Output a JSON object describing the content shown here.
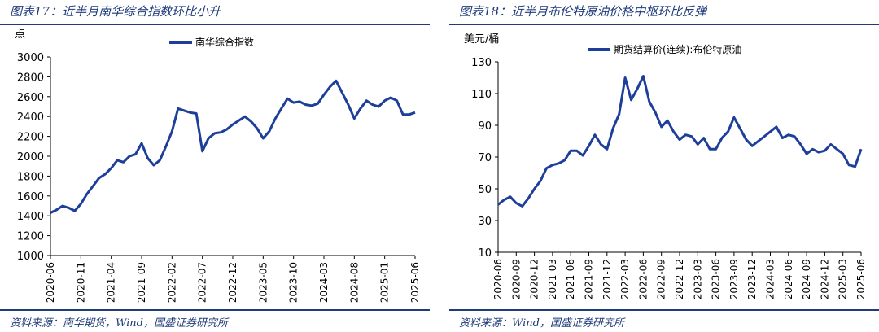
{
  "colors": {
    "accent": "#1f3b7a",
    "line": "#1e3f99",
    "axis": "#000000"
  },
  "charts": [
    {
      "figure_title": "图表17：近半月南华综合指数环比小升",
      "source": "资料来源：南华期货，Wind，国盛证券研究所",
      "chart_data": {
        "type": "line",
        "ylabel": "点",
        "ylim": [
          1000,
          3000
        ],
        "yticks": [
          "1000",
          "1200",
          "1400",
          "1600",
          "1800",
          "2000",
          "2200",
          "2400",
          "2600",
          "2800",
          "3000"
        ],
        "xticks": [
          "2020-06",
          "2020-11",
          "2021-04",
          "2021-09",
          "2022-02",
          "2022-07",
          "2022-12",
          "2023-05",
          "2023-10",
          "2024-03",
          "2024-08",
          "2025-01",
          "2025-06"
        ],
        "legend": "top-center",
        "series": [
          {
            "name": "南华综合指数",
            "points": [
              [
                "2020-06",
                1430
              ],
              [
                "2020-07",
                1460
              ],
              [
                "2020-08",
                1500
              ],
              [
                "2020-09",
                1480
              ],
              [
                "2020-10",
                1450
              ],
              [
                "2020-11",
                1520
              ],
              [
                "2020-12",
                1620
              ],
              [
                "2021-01",
                1700
              ],
              [
                "2021-02",
                1780
              ],
              [
                "2021-03",
                1820
              ],
              [
                "2021-04",
                1880
              ],
              [
                "2021-05",
                1960
              ],
              [
                "2021-06",
                1940
              ],
              [
                "2021-07",
                2000
              ],
              [
                "2021-08",
                2020
              ],
              [
                "2021-09",
                2130
              ],
              [
                "2021-10",
                1980
              ],
              [
                "2021-11",
                1910
              ],
              [
                "2021-12",
                1960
              ],
              [
                "2022-01",
                2100
              ],
              [
                "2022-02",
                2250
              ],
              [
                "2022-03",
                2480
              ],
              [
                "2022-04",
                2460
              ],
              [
                "2022-05",
                2440
              ],
              [
                "2022-06",
                2430
              ],
              [
                "2022-07",
                2050
              ],
              [
                "2022-08",
                2180
              ],
              [
                "2022-09",
                2230
              ],
              [
                "2022-10",
                2240
              ],
              [
                "2022-11",
                2270
              ],
              [
                "2022-12",
                2320
              ],
              [
                "2023-01",
                2360
              ],
              [
                "2023-02",
                2400
              ],
              [
                "2023-03",
                2350
              ],
              [
                "2023-04",
                2280
              ],
              [
                "2023-05",
                2180
              ],
              [
                "2023-06",
                2250
              ],
              [
                "2023-07",
                2380
              ],
              [
                "2023-08",
                2480
              ],
              [
                "2023-09",
                2580
              ],
              [
                "2023-10",
                2540
              ],
              [
                "2023-11",
                2550
              ],
              [
                "2023-12",
                2520
              ],
              [
                "2024-01",
                2510
              ],
              [
                "2024-02",
                2530
              ],
              [
                "2024-03",
                2620
              ],
              [
                "2024-04",
                2700
              ],
              [
                "2024-05",
                2760
              ],
              [
                "2024-06",
                2640
              ],
              [
                "2024-07",
                2520
              ],
              [
                "2024-08",
                2380
              ],
              [
                "2024-09",
                2480
              ],
              [
                "2024-10",
                2560
              ],
              [
                "2024-11",
                2520
              ],
              [
                "2024-12",
                2500
              ],
              [
                "2025-01",
                2560
              ],
              [
                "2025-02",
                2590
              ],
              [
                "2025-03",
                2560
              ],
              [
                "2025-04",
                2420
              ],
              [
                "2025-05",
                2420
              ],
              [
                "2025-06",
                2440
              ]
            ]
          }
        ]
      }
    },
    {
      "figure_title": "图表18：近半月布伦特原油价格中枢环比反弹",
      "source": "资料来源：Wind，国盛证券研究所",
      "chart_data": {
        "type": "line",
        "ylabel": "美元/桶",
        "ylim": [
          10,
          130
        ],
        "yticks": [
          "10",
          "30",
          "50",
          "70",
          "90",
          "110",
          "130"
        ],
        "xticks": [
          "2020-06",
          "2020-09",
          "2020-12",
          "2021-03",
          "2021-06",
          "2021-09",
          "2021-12",
          "2022-03",
          "2022-06",
          "2022-09",
          "2022-12",
          "2023-03",
          "2023-06",
          "2023-09",
          "2023-12",
          "2024-03",
          "2024-06",
          "2024-09",
          "2024-12",
          "2025-03",
          "2025-06"
        ],
        "legend": "top-center",
        "series": [
          {
            "name": "期货结算价(连续):布伦特原油",
            "points": [
              [
                "2020-06",
                40
              ],
              [
                "2020-07",
                43
              ],
              [
                "2020-08",
                45
              ],
              [
                "2020-09",
                41
              ],
              [
                "2020-10",
                39
              ],
              [
                "2020-11",
                44
              ],
              [
                "2020-12",
                50
              ],
              [
                "2021-01",
                55
              ],
              [
                "2021-02",
                63
              ],
              [
                "2021-03",
                65
              ],
              [
                "2021-04",
                66
              ],
              [
                "2021-05",
                68
              ],
              [
                "2021-06",
                74
              ],
              [
                "2021-07",
                74
              ],
              [
                "2021-08",
                71
              ],
              [
                "2021-09",
                77
              ],
              [
                "2021-10",
                84
              ],
              [
                "2021-11",
                78
              ],
              [
                "2021-12",
                75
              ],
              [
                "2022-01",
                88
              ],
              [
                "2022-02",
                97
              ],
              [
                "2022-03",
                120
              ],
              [
                "2022-04",
                106
              ],
              [
                "2022-05",
                113
              ],
              [
                "2022-06",
                121
              ],
              [
                "2022-07",
                105
              ],
              [
                "2022-08",
                98
              ],
              [
                "2022-09",
                89
              ],
              [
                "2022-10",
                93
              ],
              [
                "2022-11",
                86
              ],
              [
                "2022-12",
                81
              ],
              [
                "2023-01",
                84
              ],
              [
                "2023-02",
                83
              ],
              [
                "2023-03",
                78
              ],
              [
                "2023-04",
                82
              ],
              [
                "2023-05",
                75
              ],
              [
                "2023-06",
                75
              ],
              [
                "2023-07",
                82
              ],
              [
                "2023-08",
                86
              ],
              [
                "2023-09",
                95
              ],
              [
                "2023-10",
                88
              ],
              [
                "2023-11",
                81
              ],
              [
                "2023-12",
                77
              ],
              [
                "2024-01",
                80
              ],
              [
                "2024-02",
                83
              ],
              [
                "2024-03",
                86
              ],
              [
                "2024-04",
                89
              ],
              [
                "2024-05",
                82
              ],
              [
                "2024-06",
                84
              ],
              [
                "2024-07",
                83
              ],
              [
                "2024-08",
                78
              ],
              [
                "2024-09",
                72
              ],
              [
                "2024-10",
                75
              ],
              [
                "2024-11",
                73
              ],
              [
                "2024-12",
                74
              ],
              [
                "2025-01",
                78
              ],
              [
                "2025-02",
                75
              ],
              [
                "2025-03",
                72
              ],
              [
                "2025-04",
                65
              ],
              [
                "2025-05",
                64
              ],
              [
                "2025-06",
                75
              ]
            ]
          }
        ]
      }
    }
  ]
}
